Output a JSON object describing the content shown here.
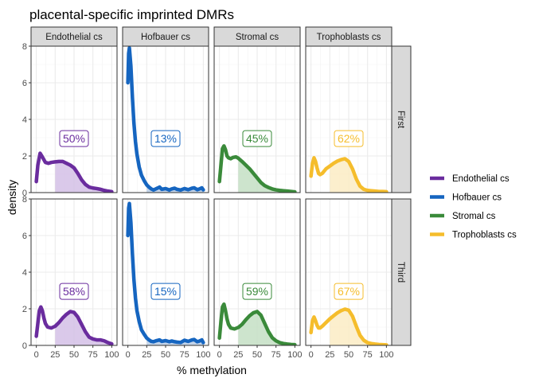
{
  "chart_data": {
    "type": "area",
    "title": "placental-specific imprinted DMRs",
    "xlabel": "% methylation",
    "ylabel": "density",
    "xlim": [
      -7,
      107
    ],
    "ylim": [
      0,
      8
    ],
    "x_ticks": [
      0,
      25,
      50,
      75,
      100
    ],
    "y_ticks": [
      0,
      2,
      4,
      6,
      8
    ],
    "x_tick_labels": [
      "0",
      "25",
      "50",
      "75",
      "100"
    ],
    "y_tick_labels": [
      "0",
      "2",
      "4",
      "6",
      "8"
    ],
    "shade_from": 25,
    "grid": true,
    "legend_position": "right",
    "columns": [
      "Endothelial cs",
      "Hofbauer cs",
      "Stromal cs",
      "Trophoblasts cs"
    ],
    "rows": [
      "First",
      "Third"
    ],
    "series": [
      {
        "name": "Endothelial cs",
        "color": "#6a2c9e",
        "fill": "#d4c0e6"
      },
      {
        "name": "Hofbauer cs",
        "color": "#1565c0",
        "fill": "#b8cde6"
      },
      {
        "name": "Stromal cs",
        "color": "#3a8a3a",
        "fill": "#c4dfc4"
      },
      {
        "name": "Trophoblasts cs",
        "color": "#f5bd2c",
        "fill": "#fbecc4"
      }
    ],
    "panels": [
      {
        "row": "First",
        "col": "Endothelial cs",
        "label": "50%",
        "x": [
          0,
          2,
          5,
          8,
          12,
          16,
          20,
          25,
          30,
          35,
          40,
          45,
          50,
          55,
          60,
          65,
          70,
          75,
          80,
          85,
          90,
          95,
          100
        ],
        "y": [
          0.6,
          1.5,
          2.15,
          1.95,
          1.65,
          1.6,
          1.65,
          1.68,
          1.7,
          1.7,
          1.6,
          1.5,
          1.35,
          1.05,
          0.7,
          0.45,
          0.3,
          0.25,
          0.22,
          0.18,
          0.12,
          0.08,
          0.05
        ]
      },
      {
        "row": "First",
        "col": "Hofbauer cs",
        "label": "13%",
        "x": [
          0,
          1,
          2,
          4,
          6,
          8,
          10,
          12,
          15,
          18,
          22,
          25,
          28,
          31,
          34,
          38,
          42,
          45,
          50,
          55,
          58,
          62,
          65,
          70,
          75,
          80,
          85,
          88,
          92,
          95,
          98,
          100
        ],
        "y": [
          6.0,
          7.6,
          7.9,
          6.9,
          5.2,
          3.8,
          2.8,
          2.1,
          1.4,
          0.95,
          0.62,
          0.42,
          0.3,
          0.2,
          0.14,
          0.22,
          0.3,
          0.18,
          0.22,
          0.14,
          0.2,
          0.24,
          0.18,
          0.14,
          0.22,
          0.16,
          0.24,
          0.26,
          0.16,
          0.2,
          0.26,
          0.15
        ]
      },
      {
        "row": "First",
        "col": "Stromal cs",
        "label": "45%",
        "x": [
          0,
          2,
          4,
          6,
          8,
          10,
          12,
          15,
          18,
          22,
          25,
          30,
          35,
          40,
          45,
          50,
          55,
          60,
          65,
          70,
          75,
          80,
          85,
          90,
          95,
          100
        ],
        "y": [
          0.6,
          1.5,
          2.4,
          2.55,
          2.35,
          2.0,
          1.9,
          1.85,
          1.92,
          1.95,
          1.88,
          1.7,
          1.5,
          1.3,
          1.05,
          0.8,
          0.55,
          0.38,
          0.28,
          0.2,
          0.15,
          0.12,
          0.1,
          0.08,
          0.06,
          0.04
        ]
      },
      {
        "row": "First",
        "col": "Trophoblasts cs",
        "label": "62%",
        "x": [
          0,
          2,
          4,
          6,
          8,
          10,
          12,
          15,
          20,
          25,
          30,
          35,
          40,
          45,
          50,
          55,
          60,
          65,
          70,
          75,
          80,
          85,
          90,
          95,
          100
        ],
        "y": [
          0.9,
          1.6,
          1.9,
          1.7,
          1.35,
          1.05,
          0.98,
          1.05,
          1.3,
          1.45,
          1.6,
          1.72,
          1.8,
          1.85,
          1.7,
          1.3,
          0.75,
          0.35,
          0.18,
          0.12,
          0.1,
          0.08,
          0.06,
          0.06,
          0.05
        ]
      },
      {
        "row": "Third",
        "col": "Endothelial cs",
        "label": "58%",
        "x": [
          0,
          2,
          4,
          6,
          8,
          10,
          12,
          15,
          20,
          25,
          30,
          35,
          40,
          45,
          50,
          55,
          60,
          65,
          70,
          75,
          80,
          85,
          90,
          95,
          100
        ],
        "y": [
          0.5,
          1.2,
          1.9,
          2.1,
          1.9,
          1.5,
          1.2,
          1.0,
          0.95,
          1.05,
          1.25,
          1.5,
          1.7,
          1.85,
          1.8,
          1.55,
          1.15,
          0.75,
          0.45,
          0.35,
          0.3,
          0.3,
          0.25,
          0.15,
          0.08
        ]
      },
      {
        "row": "Third",
        "col": "Hofbauer cs",
        "label": "15%",
        "x": [
          0,
          1,
          2,
          4,
          6,
          8,
          10,
          12,
          15,
          18,
          22,
          25,
          28,
          31,
          34,
          38,
          42,
          45,
          50,
          55,
          58,
          62,
          65,
          70,
          75,
          80,
          85,
          88,
          92,
          95,
          98,
          100
        ],
        "y": [
          6.0,
          7.5,
          7.75,
          6.7,
          5.0,
          3.6,
          2.6,
          1.9,
          1.3,
          0.85,
          0.58,
          0.4,
          0.3,
          0.22,
          0.2,
          0.26,
          0.3,
          0.22,
          0.26,
          0.2,
          0.24,
          0.2,
          0.18,
          0.16,
          0.28,
          0.22,
          0.3,
          0.32,
          0.2,
          0.24,
          0.3,
          0.15
        ]
      },
      {
        "row": "Third",
        "col": "Stromal cs",
        "label": "59%",
        "x": [
          0,
          2,
          4,
          6,
          8,
          10,
          12,
          15,
          20,
          25,
          30,
          35,
          40,
          45,
          50,
          55,
          60,
          65,
          70,
          75,
          80,
          85,
          90,
          95,
          100
        ],
        "y": [
          0.4,
          1.3,
          2.1,
          2.25,
          1.9,
          1.45,
          1.15,
          0.95,
          0.9,
          0.98,
          1.15,
          1.4,
          1.62,
          1.78,
          1.85,
          1.65,
          1.2,
          0.75,
          0.42,
          0.25,
          0.15,
          0.1,
          0.07,
          0.05,
          0.04
        ]
      },
      {
        "row": "Third",
        "col": "Trophoblasts cs",
        "label": "67%",
        "x": [
          0,
          2,
          4,
          6,
          8,
          10,
          12,
          15,
          20,
          25,
          30,
          35,
          40,
          45,
          50,
          55,
          60,
          65,
          70,
          75,
          80,
          85,
          90,
          95,
          100
        ],
        "y": [
          0.7,
          1.35,
          1.55,
          1.35,
          1.1,
          0.95,
          0.95,
          1.05,
          1.25,
          1.45,
          1.62,
          1.78,
          1.9,
          1.98,
          1.92,
          1.6,
          1.05,
          0.55,
          0.28,
          0.15,
          0.1,
          0.07,
          0.05,
          0.04,
          0.03
        ]
      }
    ]
  }
}
